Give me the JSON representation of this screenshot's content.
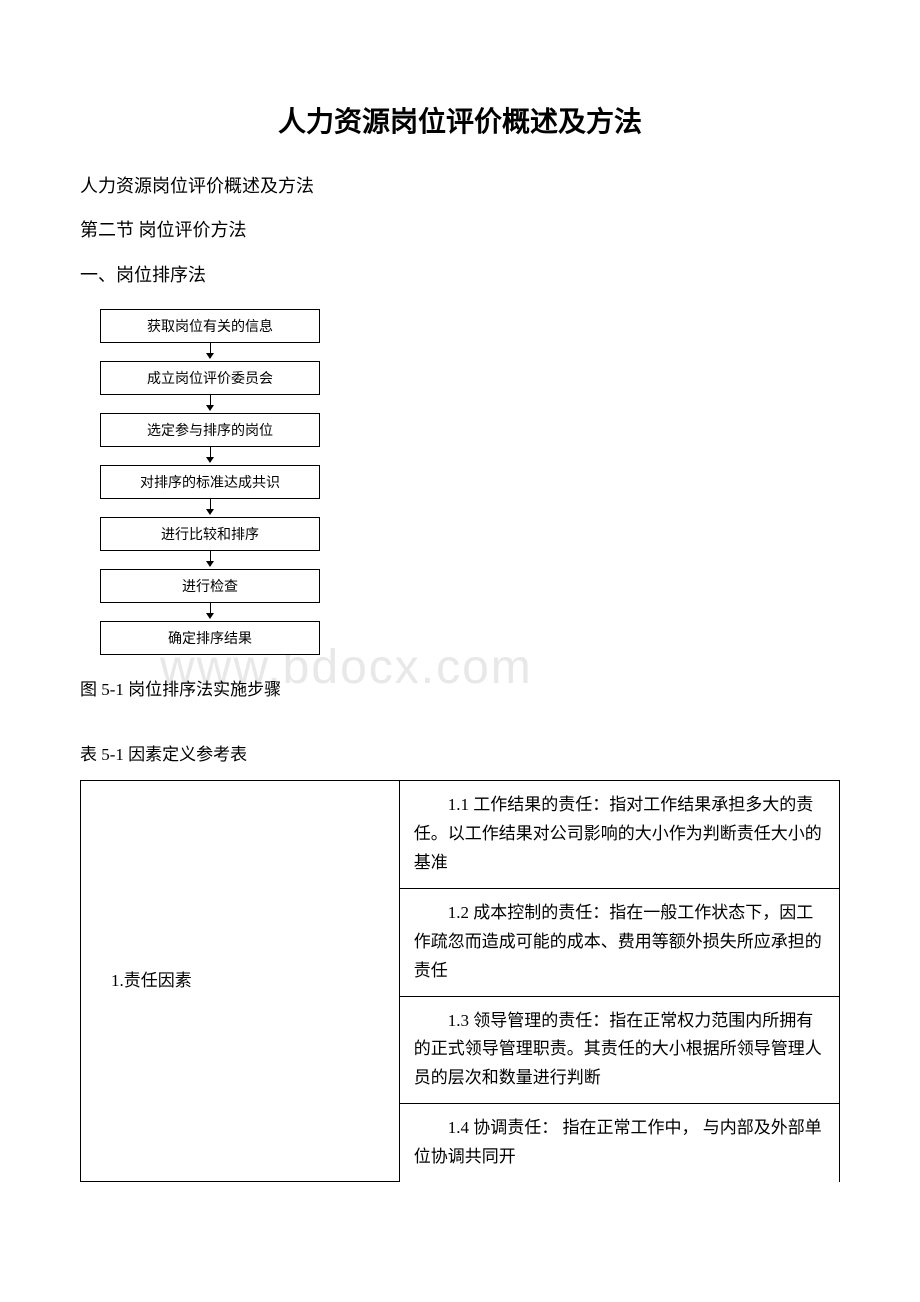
{
  "watermark": "www.bdocx.com",
  "main_title": "人力资源岗位评价概述及方法",
  "subtitle": "人力资源岗位评价概述及方法",
  "section_title": "第二节 岗位评价方法",
  "sub_section": "一、岗位排序法",
  "flowchart": {
    "steps": [
      "获取岗位有关的信息",
      "成立岗位评价委员会",
      "选定参与排序的岗位",
      "对排序的标准达成共识",
      "进行比较和排序",
      "进行检查",
      "确定排序结果"
    ],
    "box_border_color": "#000000",
    "box_background": "#ffffff",
    "box_fontsize": 14,
    "arrow_color": "#000000"
  },
  "figure_caption": "图 5-1 岗位排序法实施步骤",
  "table_caption": "表 5-1 因素定义参考表",
  "factor_table": {
    "border_color": "#000000",
    "fontsize": 17,
    "left_col_width": "42%",
    "right_col_width": "58%",
    "factor_label": "1.责任因素",
    "rows": [
      "1.1 工作结果的责任：指对工作结果承担多大的责任。以工作结果对公司影响的大小作为判断责任大小的基准",
      "1.2 成本控制的责任：指在一般工作状态下，因工作疏忽而造成可能的成本、费用等额外损失所应承担的责任",
      "1.3 领导管理的责任：指在正常权力范围内所拥有的正式领导管理职责。其责任的大小根据所领导管理人员的层次和数量进行判断",
      "1.4 协调责任： 指在正常工作中， 与内部及外部单位协调共同开"
    ]
  },
  "colors": {
    "background": "#ffffff",
    "text": "#000000",
    "watermark": "#e8e8e8"
  }
}
